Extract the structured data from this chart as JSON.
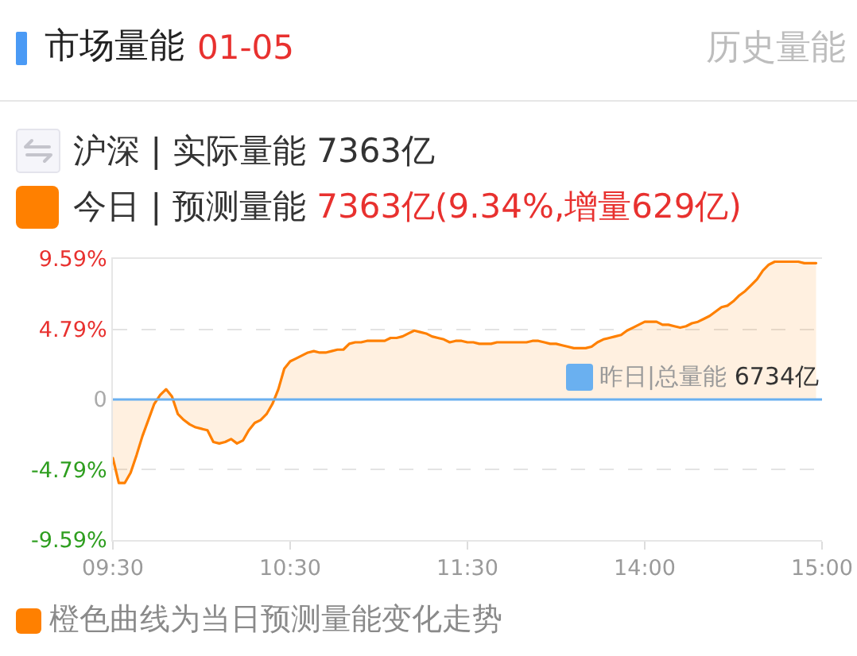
{
  "chart_data": {
    "type": "area",
    "title": "市场量能",
    "subtitle": "01-05",
    "annotations": [
      "历史量能",
      "沪深 | 实际量能 7363亿",
      "橙色曲线为当日预测量能变化走势"
    ],
    "categories": [
      "09:30",
      null,
      null,
      null,
      null,
      null,
      null,
      null,
      null,
      null,
      null,
      null,
      null,
      null,
      null,
      null,
      null,
      null,
      null,
      null,
      null,
      null,
      null,
      null,
      null,
      null,
      null,
      null,
      null,
      null,
      "10:30",
      null,
      null,
      null,
      null,
      null,
      null,
      null,
      null,
      null,
      null,
      null,
      null,
      null,
      null,
      null,
      null,
      null,
      null,
      null,
      null,
      null,
      null,
      null,
      null,
      null,
      null,
      null,
      null,
      null,
      "11:30",
      null,
      null,
      null,
      null,
      null,
      null,
      null,
      null,
      null,
      null,
      null,
      null,
      null,
      null,
      null,
      null,
      null,
      null,
      null,
      null,
      null,
      null,
      null,
      null,
      null,
      null,
      null,
      null,
      null,
      "14:00",
      null,
      null,
      null,
      null,
      null,
      null,
      null,
      null,
      null,
      null,
      null,
      null,
      null,
      null,
      null,
      null,
      null,
      null,
      null,
      null,
      null,
      null,
      null,
      null,
      null,
      null,
      null,
      null,
      null,
      "15:00"
    ],
    "series": [
      {
        "name": "今日 | 预测量能 7363亿(9.34%,增量629亿)",
        "color": "#ff8000",
        "values": [
          -4.0,
          -5.7,
          -5.7,
          -5.0,
          -3.8,
          -2.5,
          -1.4,
          -0.3,
          0.3,
          0.7,
          0.2,
          -1.0,
          -1.4,
          -1.7,
          -1.9,
          -2.0,
          -2.1,
          -2.9,
          -3.0,
          -2.9,
          -2.7,
          -3.0,
          -2.8,
          -2.1,
          -1.6,
          -1.4,
          -1.0,
          -0.3,
          0.7,
          2.1,
          2.6,
          2.8,
          3.0,
          3.2,
          3.3,
          3.2,
          3.2,
          3.3,
          3.4,
          3.4,
          3.8,
          3.9,
          3.9,
          4.0,
          4.0,
          4.0,
          4.0,
          4.2,
          4.2,
          4.3,
          4.5,
          4.7,
          4.6,
          4.5,
          4.3,
          4.2,
          4.1,
          3.9,
          4.0,
          4.0,
          3.9,
          3.9,
          3.8,
          3.8,
          3.8,
          3.9,
          3.9,
          3.9,
          3.9,
          3.9,
          3.9,
          4.0,
          4.0,
          3.9,
          3.8,
          3.8,
          3.7,
          3.6,
          3.5,
          3.5,
          3.5,
          3.6,
          3.9,
          4.1,
          4.2,
          4.3,
          4.4,
          4.7,
          4.9,
          5.1,
          5.3,
          5.3,
          5.3,
          5.1,
          5.1,
          5.0,
          4.9,
          5.0,
          5.2,
          5.3,
          5.5,
          5.7,
          6.0,
          6.3,
          6.4,
          6.7,
          7.1,
          7.4,
          7.8,
          8.2,
          8.8,
          9.2,
          9.4,
          9.4,
          9.4,
          9.4,
          9.4,
          9.3,
          9.3,
          9.3,
          null
        ]
      }
    ],
    "ylim": [
      -9.59,
      9.59
    ],
    "yticks": [
      {
        "value": -9.59,
        "label": "-9.59%"
      },
      {
        "value": -4.79,
        "label": "-4.79%"
      },
      0,
      {
        "value": 4.79,
        "label": "4.79%"
      },
      {
        "value": 9.59,
        "label": "9.59%"
      }
    ],
    "ref_lines": [
      {
        "axis": "y",
        "value": 0,
        "label": "昨日|总量能 6734亿",
        "color": "#6ab0f0"
      }
    ],
    "grid": "y",
    "legend": "top left"
  }
}
